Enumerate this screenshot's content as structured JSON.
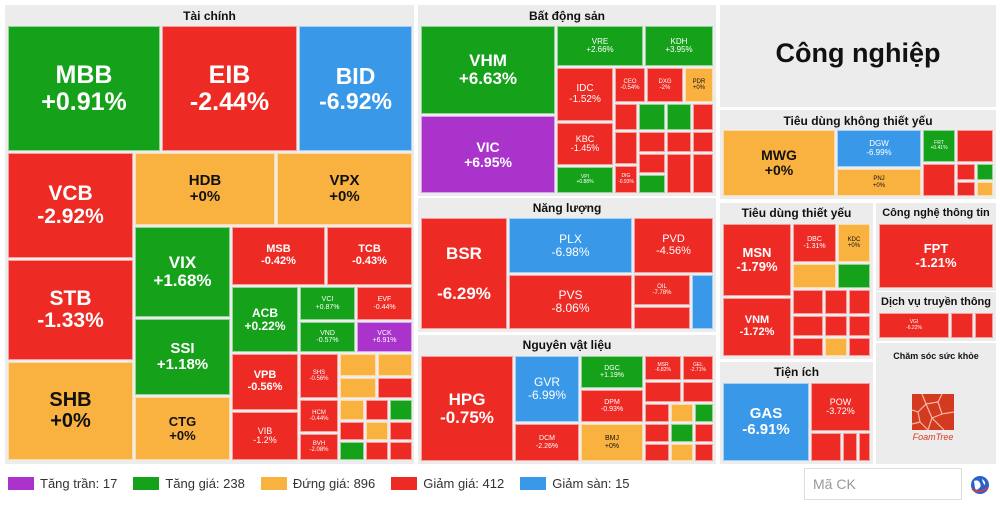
{
  "colors": {
    "tang_tran": "#aa33cc",
    "tang_gia": "#16a11b",
    "dung_gia": "#f9b240",
    "giam_gia": "#ee2a24",
    "giam_san": "#3a98e8",
    "background": "#ececec"
  },
  "sectors": [
    {
      "title": "Tài chính"
    },
    {
      "title": "Bất động sản"
    },
    {
      "title": "Công nghiệp"
    },
    {
      "title": "Tiêu dùng không thiết yếu"
    },
    {
      "title": "Năng lượng"
    },
    {
      "title": "Tiêu dùng thiết yếu"
    },
    {
      "title": "Công nghệ thông tin"
    },
    {
      "title": "Dịch vụ truyền thông"
    },
    {
      "title": "Nguyên vật liệu"
    },
    {
      "title": "Tiện ích"
    },
    {
      "title": "Chăm sóc sức khỏe"
    }
  ],
  "tiles": [
    {
      "s": "MBB",
      "p": "+0.91%"
    },
    {
      "s": "EIB",
      "p": "-2.44%"
    },
    {
      "s": "BID",
      "p": "-6.92%"
    },
    {
      "s": "VCB",
      "p": "-2.92%"
    },
    {
      "s": "HDB",
      "p": "+0%"
    },
    {
      "s": "VPX",
      "p": "+0%"
    },
    {
      "s": "STB",
      "p": "-1.33%"
    },
    {
      "s": "VIX",
      "p": "+1.68%"
    },
    {
      "s": "MSB",
      "p": "-0.42%"
    },
    {
      "s": "TCB",
      "p": "-0.43%"
    },
    {
      "s": "ACB",
      "p": "+0.22%"
    },
    {
      "s": "VCI",
      "p": "+0.87%"
    },
    {
      "s": "EVF",
      "p": "-0.44%"
    },
    {
      "s": "VND",
      "p": "-0.57%"
    },
    {
      "s": "VCK",
      "p": "+6.91%"
    },
    {
      "s": "SSI",
      "p": "+1.18%"
    },
    {
      "s": "SHB",
      "p": "+0%"
    },
    {
      "s": "VPB",
      "p": "-0.56%"
    },
    {
      "s": "SHS",
      "p": "-0.56%"
    },
    {
      "s": "CTG",
      "p": "+0%"
    },
    {
      "s": "HCM",
      "p": "-0.44%"
    },
    {
      "s": "VIB",
      "p": "-1.2%"
    },
    {
      "s": "BVH",
      "p": "-2.08%"
    },
    {
      "s": "VHM",
      "p": "+6.63%"
    },
    {
      "s": "VRE",
      "p": "+2.66%"
    },
    {
      "s": "KDH",
      "p": "+3.95%"
    },
    {
      "s": "IDC",
      "p": "-1.52%"
    },
    {
      "s": "CEO",
      "p": "-0.54%"
    },
    {
      "s": "DXG",
      "p": "-2%"
    },
    {
      "s": "PDR",
      "p": "+0%"
    },
    {
      "s": "VIC",
      "p": "+6.95%"
    },
    {
      "s": "KBC",
      "p": "-1.45%"
    },
    {
      "s": "VPI",
      "p": "+0.88%"
    },
    {
      "s": "DIG",
      "p": "-0.93%"
    },
    {
      "s": "MWG",
      "p": "+0%"
    },
    {
      "s": "DGW",
      "p": "-6.99%"
    },
    {
      "s": "FRT",
      "p": "+0.41%"
    },
    {
      "s": "PNJ",
      "p": "+0%"
    },
    {
      "s": "BSR",
      "p": "-6.29%"
    },
    {
      "s": "PLX",
      "p": "-6.98%"
    },
    {
      "s": "PVD",
      "p": "-4.56%"
    },
    {
      "s": "PVS",
      "p": "-8.06%"
    },
    {
      "s": "OIL",
      "p": "-7.78%"
    },
    {
      "s": "MSN",
      "p": "-1.79%"
    },
    {
      "s": "DBC",
      "p": "-1.31%"
    },
    {
      "s": "KDC",
      "p": "+0%"
    },
    {
      "s": "VNM",
      "p": "-1.72%"
    },
    {
      "s": "FPT",
      "p": "-1.21%"
    },
    {
      "s": "VGI",
      "p": "-6.22%"
    },
    {
      "s": "HPG",
      "p": "-0.75%"
    },
    {
      "s": "GVR",
      "p": "-6.99%"
    },
    {
      "s": "DGC",
      "p": "+1.19%"
    },
    {
      "s": "MSR",
      "p": "-6.82%"
    },
    {
      "s": "GEL",
      "p": "-2.71%"
    },
    {
      "s": "DPM",
      "p": "-0.93%"
    },
    {
      "s": "DCM",
      "p": "-2.26%"
    },
    {
      "s": "BMJ",
      "p": "+0%"
    },
    {
      "s": "GAS",
      "p": "-6.91%"
    },
    {
      "s": "POW",
      "p": "-3.72%"
    },
    {
      "s": "...",
      "p": ""
    }
  ],
  "legend": [
    {
      "label": "Tăng trần: 17"
    },
    {
      "label": "Tăng giá: 238"
    },
    {
      "label": "Đứng giá: 896"
    },
    {
      "label": "Giảm giá: 412"
    },
    {
      "label": "Giảm sàn: 15"
    }
  ],
  "search": {
    "placeholder": "Mã CK"
  },
  "foamtree": {
    "label": "FoamTree"
  }
}
